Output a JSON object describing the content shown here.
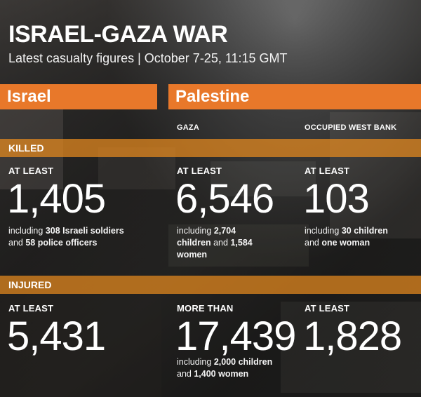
{
  "header": {
    "title": "ISRAEL-GAZA WAR",
    "subtitle": "Latest casualty figures  |  October 7-25, 11:15 GMT"
  },
  "countries": {
    "israel": "Israel",
    "palestine": "Palestine"
  },
  "regions": {
    "gaza": "GAZA",
    "west_bank": "OCCUPIED WEST BANK"
  },
  "sections": {
    "killed": "KILLED",
    "injured": "INJURED"
  },
  "killed": {
    "israel": {
      "qualifier": "AT LEAST",
      "value": "1,405",
      "desc_pre": "including ",
      "desc_b1": "308 Israeli soldiers",
      "desc_mid": " and ",
      "desc_b2": "58 police officers",
      "desc_post": ""
    },
    "gaza": {
      "qualifier": "AT LEAST",
      "value": "6,546",
      "desc_pre": "including ",
      "desc_b1": "2,704 children",
      "desc_mid": " and ",
      "desc_b2": "1,584 women",
      "desc_post": ""
    },
    "west_bank": {
      "qualifier": "AT LEAST",
      "value": "103",
      "desc_pre": "including ",
      "desc_b1": "30 children",
      "desc_mid": " and ",
      "desc_b2": "one woman",
      "desc_post": ""
    }
  },
  "injured": {
    "israel": {
      "qualifier": "AT LEAST",
      "value": "5,431"
    },
    "gaza": {
      "qualifier": "MORE THAN",
      "value": "17,439",
      "desc_pre": "including ",
      "desc_b1": "2,000 children",
      "desc_mid": " and ",
      "desc_b2": "1,400 women",
      "desc_post": ""
    },
    "west_bank": {
      "qualifier": "AT LEAST",
      "value": "1,828"
    }
  },
  "colors": {
    "accent_orange": "#e8782a",
    "section_bar": "#e88a1e"
  }
}
